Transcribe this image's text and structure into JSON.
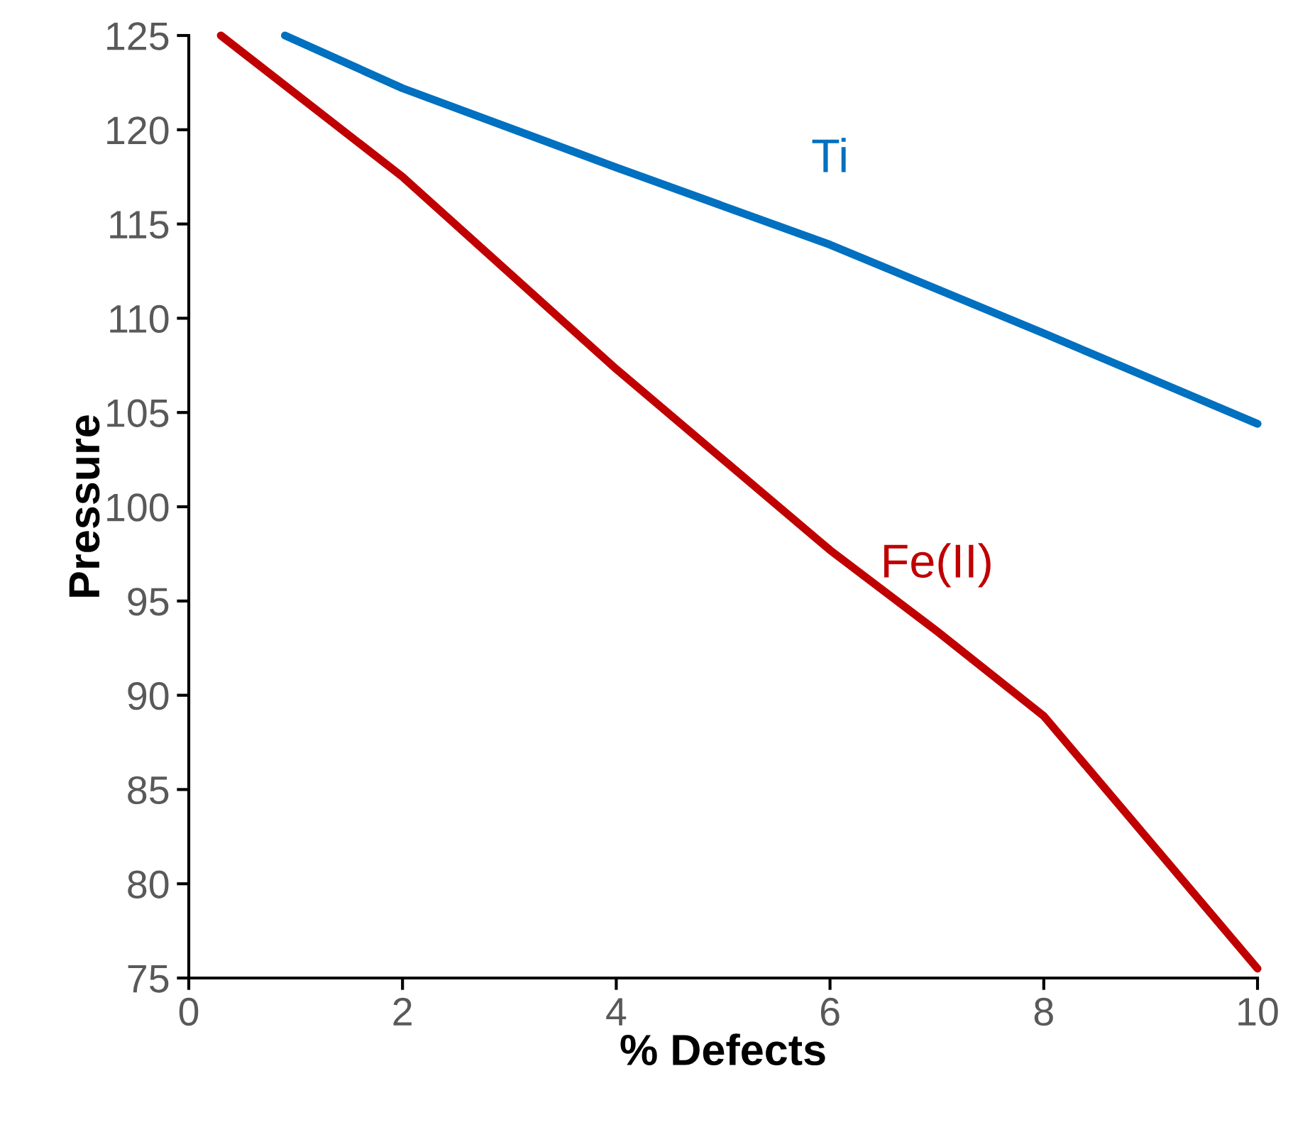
{
  "chart_data": {
    "type": "line",
    "xlabel": "% Defects",
    "ylabel": "Pressure",
    "xlim": [
      0,
      10
    ],
    "ylim": [
      75,
      125
    ],
    "xticks": [
      0,
      2,
      4,
      6,
      8,
      10
    ],
    "yticks": [
      75,
      80,
      85,
      90,
      95,
      100,
      105,
      110,
      115,
      120,
      125
    ],
    "grid": false,
    "legend": false,
    "marker": "none",
    "line_style": "solid",
    "series": [
      {
        "name": "Ti",
        "color": "#0070c0",
        "x": [
          0.9,
          2,
          4,
          6,
          8,
          10
        ],
        "values": [
          125,
          122.2,
          118.0,
          113.9,
          109.2,
          104.4
        ]
      },
      {
        "name": "Fe(II)",
        "color": "#c00000",
        "x": [
          0.3,
          2,
          4,
          6,
          7,
          8,
          10
        ],
        "values": [
          125,
          117.5,
          107.3,
          97.7,
          93.4,
          88.9,
          75.5
        ]
      }
    ]
  }
}
